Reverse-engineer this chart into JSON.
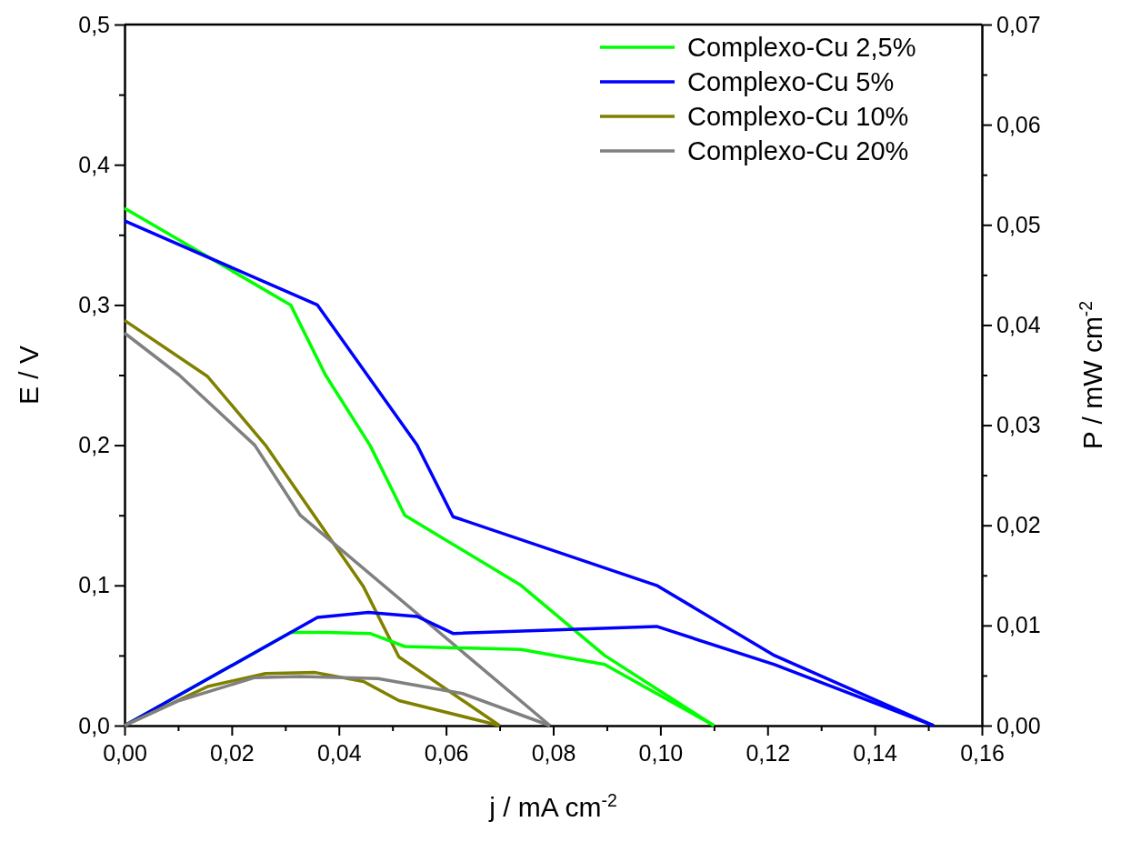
{
  "chart_data": {
    "type": "line",
    "xlabel": "j / mA cm$^{-2}$",
    "ylabel": "E / V",
    "y2label": "P / mW cm$^{-2}$",
    "xlim": [
      0,
      0.16
    ],
    "ylim": [
      0,
      0.5
    ],
    "y2lim": [
      0,
      0.07
    ],
    "xticks": [
      {
        "value": 0,
        "label": "0,00"
      },
      {
        "value": 0.01,
        "label": null
      },
      {
        "value": 0.02,
        "label": "0,02"
      },
      {
        "value": 0.03,
        "label": null
      },
      {
        "value": 0.04,
        "label": "0,04"
      },
      {
        "value": 0.05,
        "label": null
      },
      {
        "value": 0.06,
        "label": "0,06"
      },
      {
        "value": 0.07,
        "label": null
      },
      {
        "value": 0.08,
        "label": "0,08"
      },
      {
        "value": 0.09,
        "label": null
      },
      {
        "value": 0.1,
        "label": "0,10"
      },
      {
        "value": 0.11,
        "label": null
      },
      {
        "value": 0.12,
        "label": "0,12"
      },
      {
        "value": 0.13,
        "label": null
      },
      {
        "value": 0.14,
        "label": "0,14"
      },
      {
        "value": 0.15,
        "label": null
      },
      {
        "value": 0.16,
        "label": "0,16"
      }
    ],
    "yticks": [
      {
        "value": 0,
        "label": "0,0"
      },
      {
        "value": 0.05,
        "label": null
      },
      {
        "value": 0.1,
        "label": "0,1"
      },
      {
        "value": 0.15,
        "label": null
      },
      {
        "value": 0.2,
        "label": "0,2"
      },
      {
        "value": 0.25,
        "label": null
      },
      {
        "value": 0.3,
        "label": "0,3"
      },
      {
        "value": 0.35,
        "label": null
      },
      {
        "value": 0.4,
        "label": "0,4"
      },
      {
        "value": 0.45,
        "label": null
      },
      {
        "value": 0.5,
        "label": "0,5"
      }
    ],
    "y2ticks": [
      {
        "value": 0,
        "label": "0,00"
      },
      {
        "value": 0.005,
        "label": null
      },
      {
        "value": 0.01,
        "label": "0,01"
      },
      {
        "value": 0.015,
        "label": null
      },
      {
        "value": 0.02,
        "label": "0,02"
      },
      {
        "value": 0.025,
        "label": null
      },
      {
        "value": 0.03,
        "label": "0,03"
      },
      {
        "value": 0.035,
        "label": null
      },
      {
        "value": 0.04,
        "label": "0,04"
      },
      {
        "value": 0.045,
        "label": null
      },
      {
        "value": 0.05,
        "label": "0,05"
      },
      {
        "value": 0.055,
        "label": null
      },
      {
        "value": 0.06,
        "label": "0,06"
      },
      {
        "value": 0.065,
        "label": null
      },
      {
        "value": 0.07,
        "label": "0,07"
      }
    ],
    "grid": false,
    "legend": "top right",
    "marker": "none",
    "line_style": "solid",
    "series": [
      {
        "name": "Complexo-Cu 2,5%",
        "color": "#00ff00",
        "x": [
          0,
          0.031,
          0.0375,
          0.0458,
          0.0523,
          0.074,
          0.0896,
          0.11
        ],
        "values": [
          0.369,
          0.3,
          0.25,
          0.2,
          0.15,
          0.1,
          0.05,
          0
        ]
      },
      {
        "name": "Complexo-Cu 5%",
        "color": "#0000ff",
        "x": [
          0,
          0.036,
          0.0546,
          0.0613,
          0.0993,
          0.1213,
          0.151
        ],
        "values": [
          0.36,
          0.3,
          0.2,
          0.149,
          0.1,
          0.05,
          0
        ]
      },
      {
        "name": "Complexo-Cu 10%",
        "color": "#808000",
        "x": [
          0,
          0.0155,
          0.0263,
          0.0446,
          0.0512,
          0.07
        ],
        "values": [
          0.289,
          0.249,
          0.2,
          0.099,
          0.049,
          0
        ]
      },
      {
        "name": "Complexo-Cu 20%",
        "color": "#808080",
        "x": [
          0,
          0.0102,
          0.0243,
          0.0328,
          0.0794
        ],
        "values": [
          0.28,
          0.25,
          0.2,
          0.15,
          0
        ]
      },
      {
        "color": "#00ff00",
        "axis": "y2",
        "x": [
          0,
          0.031,
          0.0375,
          0.0458,
          0.0523,
          0.074,
          0.0896,
          0.11
        ],
        "values": [
          0,
          0.0093,
          0.0093,
          0.0092,
          0.0079,
          0.0076,
          0.0061,
          0
        ]
      },
      {
        "color": "#0000ff",
        "axis": "y2",
        "x": [
          0,
          0.036,
          0.0455,
          0.0546,
          0.0613,
          0.0993,
          0.1213,
          0.151
        ],
        "values": [
          0,
          0.0108,
          0.0113,
          0.0109,
          0.0092,
          0.0099,
          0.0061,
          0
        ]
      },
      {
        "color": "#808000",
        "axis": "y2",
        "x": [
          0,
          0.0155,
          0.0263,
          0.0356,
          0.0446,
          0.0512,
          0.07
        ],
        "values": [
          0,
          0.0039,
          0.0052,
          0.0053,
          0.0044,
          0.0025,
          0
        ]
      },
      {
        "color": "#808080",
        "axis": "y2",
        "x": [
          0,
          0.0102,
          0.0243,
          0.0328,
          0.0473,
          0.0631,
          0.0794
        ],
        "values": [
          0,
          0.0025,
          0.0048,
          0.0049,
          0.0047,
          0.0032,
          0
        ]
      }
    ]
  }
}
